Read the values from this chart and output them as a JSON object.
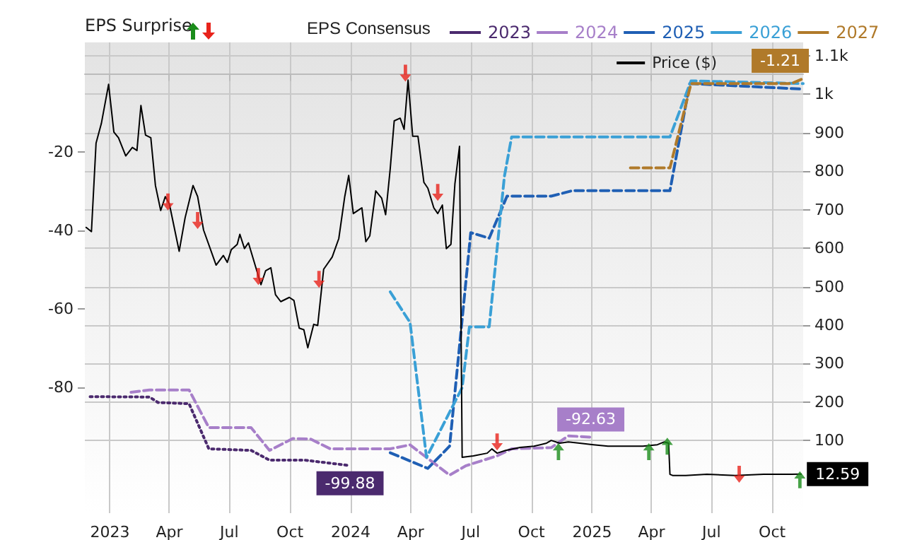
{
  "chart_data": {
    "type": "line",
    "ylabel": "EPS Surprise",
    "legend_title": "EPS Consensus",
    "legend": "top",
    "grid": true,
    "xlim": [
      "2022-11-24",
      "2025-11-17"
    ],
    "xticks": [
      {
        "value": "2023-01-01",
        "label": "2023"
      },
      {
        "value": "2023-04-01",
        "label": "Apr"
      },
      {
        "value": "2023-07-01",
        "label": "Jul"
      },
      {
        "value": "2023-10-01",
        "label": "Oct"
      },
      {
        "value": "2024-01-01",
        "label": "2024"
      },
      {
        "value": "2024-04-01",
        "label": "Apr"
      },
      {
        "value": "2024-07-01",
        "label": "Jul"
      },
      {
        "value": "2024-10-01",
        "label": "Oct"
      },
      {
        "value": "2025-01-01",
        "label": "2025"
      },
      {
        "value": "2025-04-01",
        "label": "Apr"
      },
      {
        "value": "2025-07-01",
        "label": "Jul"
      },
      {
        "value": "2025-10-01",
        "label": "Oct"
      }
    ],
    "ylim": [
      -112,
      8
    ],
    "yticks": [
      -80,
      -60,
      -40,
      -20
    ],
    "y2lim": [
      -89,
      1135
    ],
    "y2ticks": [
      100,
      200,
      300,
      400,
      500,
      600,
      700,
      800,
      900,
      {
        "value": 1000,
        "label": "1k"
      },
      {
        "value": 1100,
        "label": "1.1k"
      }
    ],
    "series": [
      {
        "name": "2023",
        "color": "#4b2a6e",
        "line_style": "dotted",
        "marker": "none",
        "x": [
          "2022-12-02",
          "2023-03-02",
          "2023-03-15",
          "2023-05-01",
          "2023-05-31",
          "2023-08-03",
          "2023-08-31",
          "2023-10-24",
          "2023-12-31"
        ],
        "values": [
          -82.3,
          -82.4,
          -83.8,
          -84.1,
          -95.6,
          -96,
          -98.5,
          -98.5,
          -99.88
        ],
        "value_labels": [
          null,
          null,
          null,
          null,
          null,
          null,
          null,
          null,
          "-99.88"
        ]
      },
      {
        "name": "2024",
        "color": "#a77fc9",
        "line_style": "dashed",
        "marker": "none",
        "x": [
          "2023-02-02",
          "2023-03-02",
          "2023-05-01",
          "2023-05-31",
          "2023-08-03",
          "2023-08-31",
          "2023-10-05",
          "2023-11-01",
          "2023-12-01",
          "2024-03-01",
          "2024-03-31",
          "2024-05-30",
          "2024-06-24",
          "2024-08-10",
          "2024-09-01",
          "2024-10-31",
          "2024-11-26",
          "2024-12-30"
        ],
        "values": [
          -81.2,
          -80.6,
          -80.6,
          -90.2,
          -90.2,
          -96,
          -93,
          -93.1,
          -95.6,
          -95.6,
          -94.6,
          -102.3,
          -99.9,
          -97.4,
          -95.6,
          -95.3,
          -92.3,
          -92.63
        ],
        "value_labels": [
          null,
          null,
          null,
          null,
          null,
          null,
          null,
          null,
          null,
          null,
          null,
          null,
          null,
          null,
          null,
          null,
          null,
          "-92.63"
        ]
      },
      {
        "name": "2025",
        "color": "#1f5fb4",
        "line_style": "dashed",
        "marker": "none",
        "x": [
          "2024-03-01",
          "2024-04-27",
          "2024-05-30",
          "2024-07-01",
          "2024-07-29",
          "2024-08-25",
          "2024-10-31",
          "2024-12-02",
          "2025-04-29",
          "2025-05-29",
          "2025-11-17"
        ],
        "values": [
          -96.6,
          -100.6,
          -94.9,
          -40.5,
          -41.9,
          -31.2,
          -31.2,
          -29.8,
          -29.8,
          -2.5,
          -3.9
        ]
      },
      {
        "name": "2026",
        "color": "#3aa0d6",
        "line_style": "dashed",
        "marker": "none",
        "x": [
          "2024-03-01",
          "2024-03-31",
          "2024-04-25",
          "2024-06-18",
          "2024-06-29",
          "2024-07-29",
          "2024-08-21",
          "2024-09-01",
          "2025-04-29",
          "2025-05-31",
          "2025-11-17"
        ],
        "values": [
          -55.6,
          -63.4,
          -97.8,
          -80,
          -64.5,
          -64.5,
          -26.2,
          -16.1,
          -16.1,
          -1.8,
          -2.5
        ]
      },
      {
        "name": "2027",
        "color": "#b07a2a",
        "line_style": "dashed",
        "marker": "none",
        "x": [
          "2025-02-28",
          "2025-04-29",
          "2025-05-31",
          "2025-10-30",
          "2025-11-17"
        ],
        "values": [
          -24,
          -24,
          -2.5,
          -2.5,
          -1.21
        ],
        "value_labels": [
          null,
          null,
          null,
          null,
          "-1.21"
        ]
      },
      {
        "name": "Price ($)",
        "color": "#000000",
        "line_style": "solid",
        "marker": "none",
        "axis": "y2",
        "x": [
          "2022-11-26",
          "2022-12-04",
          "2022-12-11",
          "2022-12-19",
          "2022-12-30",
          "2023-01-07",
          "2023-01-14",
          "2023-01-25",
          "2023-02-04",
          "2023-02-11",
          "2023-02-17",
          "2023-02-24",
          "2023-03-04",
          "2023-03-11",
          "2023-03-19",
          "2023-03-26",
          "2023-04-01",
          "2023-04-16",
          "2023-04-25",
          "2023-05-07",
          "2023-05-14",
          "2023-05-23",
          "2023-06-11",
          "2023-06-22",
          "2023-06-28",
          "2023-07-04",
          "2023-07-13",
          "2023-07-17",
          "2023-07-24",
          "2023-07-30",
          "2023-08-18",
          "2023-08-25",
          "2023-09-02",
          "2023-09-09",
          "2023-09-17",
          "2023-09-30",
          "2023-10-07",
          "2023-10-15",
          "2023-10-22",
          "2023-10-28",
          "2023-11-06",
          "2023-11-12",
          "2023-11-21",
          "2023-12-04",
          "2023-12-14",
          "2023-12-23",
          "2023-12-29",
          "2024-01-05",
          "2024-01-18",
          "2024-01-24",
          "2024-01-30",
          "2024-02-08",
          "2024-02-17",
          "2024-02-23",
          "2024-03-01",
          "2024-03-07",
          "2024-03-16",
          "2024-03-22",
          "2024-03-28",
          "2024-04-04",
          "2024-04-12",
          "2024-04-21",
          "2024-04-27",
          "2024-05-06",
          "2024-05-12",
          "2024-05-19",
          "2024-05-25",
          "2024-06-01",
          "2024-06-07",
          "2024-06-14",
          "2024-06-18",
          "2024-07-05",
          "2024-07-26",
          "2024-08-02",
          "2024-08-10",
          "2024-08-23",
          "2024-09-14",
          "2024-10-05",
          "2024-10-24",
          "2024-10-31",
          "2024-11-13",
          "2024-11-26",
          "2024-12-13",
          "2025-01-03",
          "2025-01-25",
          "2025-02-15",
          "2025-03-19",
          "2025-04-10",
          "2025-04-20",
          "2025-04-27",
          "2025-04-29",
          "2025-05-03",
          "2025-05-23",
          "2025-06-24",
          "2025-08-06",
          "2025-09-18",
          "2025-10-30",
          "2025-11-14"
        ],
        "values": [
          654,
          643,
          873,
          924,
          1026,
          902,
          887,
          840,
          862,
          854,
          971,
          894,
          887,
          763,
          698,
          734,
          716,
          592,
          679,
          763,
          734,
          647,
          556,
          581,
          563,
          596,
          610,
          636,
          599,
          614,
          505,
          541,
          549,
          479,
          461,
          472,
          464,
          392,
          388,
          341,
          402,
          399,
          545,
          577,
          625,
          734,
          789,
          690,
          705,
          617,
          632,
          749,
          730,
          687,
          807,
          931,
          938,
          909,
          1037,
          891,
          891,
          771,
          756,
          705,
          690,
          712,
          599,
          610,
          767,
          865,
          56,
          60,
          67,
          78,
          67,
          74,
          82,
          85,
          93,
          100,
          93,
          96,
          93,
          89,
          85,
          85,
          85,
          89,
          96,
          93,
          12,
          9,
          9,
          12,
          9,
          12,
          12,
          12.59
        ],
        "value_labels": [
          null,
          null,
          null,
          null,
          null,
          null,
          null,
          null,
          null,
          null,
          null,
          null,
          null,
          null,
          null,
          null,
          null,
          null,
          null,
          null,
          null,
          null,
          null,
          null,
          null,
          null,
          null,
          null,
          null,
          null,
          null,
          null,
          null,
          null,
          null,
          null,
          null,
          null,
          null,
          null,
          null,
          null,
          null,
          null,
          null,
          null,
          null,
          null,
          null,
          null,
          null,
          null,
          null,
          null,
          null,
          null,
          null,
          null,
          null,
          null,
          null,
          null,
          null,
          null,
          null,
          null,
          null,
          null,
          null,
          null,
          null,
          null,
          null,
          null,
          null,
          null,
          null,
          null,
          null,
          null,
          null,
          null,
          null,
          null,
          null,
          null,
          null,
          null,
          null,
          null,
          null,
          null,
          null,
          null,
          null,
          null,
          null,
          "12.59"
        ]
      },
      {
        "type": "scatter",
        "color": "#1a8c1a",
        "marker": "triangle",
        "axis": "y2",
        "x": [
          "2024-11-11",
          "2025-03-28",
          "2025-04-25",
          "2025-11-12"
        ],
        "values": [
          71,
          71,
          85,
          -2
        ]
      },
      {
        "type": "scatter",
        "color": "#e8231b",
        "marker": "triangle",
        "axis": "y2",
        "x": [
          "2023-03-30",
          "2023-05-14",
          "2023-08-14",
          "2023-11-14",
          "2024-03-24",
          "2024-05-12",
          "2024-08-10",
          "2025-08-12"
        ],
        "values": [
          720,
          672,
          526,
          519,
          1055,
          745,
          96,
          12
        ]
      }
    ]
  }
}
